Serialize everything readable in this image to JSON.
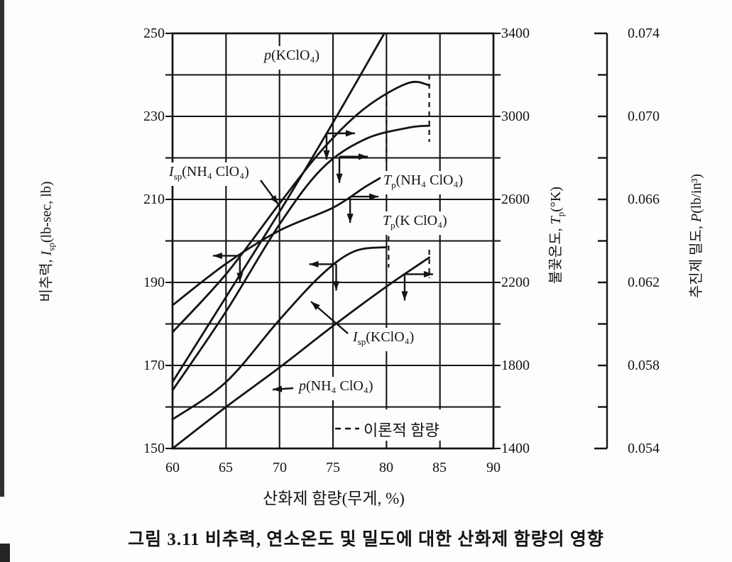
{
  "figure": {
    "caption": "그림 3.11  비추력, 연소온도 및 밀도에 대한 산화제 함량의 영향",
    "ink_color": "#141414",
    "background_color": "#fdfdfb"
  },
  "chart_data": {
    "type": "line",
    "xlabel": "산화제 함량(무게, %)",
    "x_range": [
      60,
      90
    ],
    "x_ticks": [
      "60",
      "65",
      "70",
      "75",
      "80",
      "85",
      "90"
    ],
    "grid": "on",
    "axes": {
      "isp": {
        "side": "left",
        "ko": "비추력, ",
        "var": "I",
        "sub": "sp",
        "unit": "(lb-sec, lb)",
        "range": [
          150,
          250
        ],
        "ticks": [
          "250",
          "230",
          "210",
          "190",
          "170",
          "150"
        ]
      },
      "temp": {
        "side": "right",
        "ko": "불꽃온도, ",
        "var": "T",
        "sub": "p",
        "unit": "(°K)",
        "range": [
          1400,
          3400
        ],
        "ticks": [
          "3400",
          "3000",
          "2600",
          "2200",
          "1800",
          "1400"
        ]
      },
      "density": {
        "side": "far-right",
        "ko": "추진제 밀도, ",
        "var": "P",
        "sub": "",
        "unit": "(lb/in³)",
        "range": [
          0.054,
          0.074
        ],
        "ticks": [
          "0.074",
          "0.070",
          "0.066",
          "0.062",
          "0.058",
          "0.054"
        ]
      }
    },
    "series": [
      {
        "name": "p(KClO4) density",
        "axis": "density",
        "label": {
          "var": "p",
          "sub": "",
          "post": "(KClO₄)"
        },
        "marker": {
          "x": 74.4,
          "dir": "right"
        },
        "points": [
          [
            60,
            0.0572
          ],
          [
            65,
            0.0613
          ],
          [
            70,
            0.0654
          ],
          [
            75,
            0.0697
          ],
          [
            79.8,
            0.074
          ]
        ]
      },
      {
        "name": "Isp(NH4ClO4)",
        "axis": "isp",
        "label": {
          "var": "I",
          "sub": "sp",
          "post": "(NH₄ ClO₄)"
        },
        "marker": {
          "x": 66.3,
          "dir": "left"
        },
        "points": [
          [
            60,
            178
          ],
          [
            65,
            192
          ],
          [
            70,
            209
          ],
          [
            74,
            222
          ],
          [
            78,
            232
          ],
          [
            82,
            238
          ],
          [
            84,
            237.5
          ]
        ]
      },
      {
        "name": "Tp(NH4ClO4)",
        "axis": "temp",
        "label": {
          "var": "T",
          "sub": "p",
          "post": "(NH₄ ClO₄)"
        },
        "marker": {
          "x": 75.6,
          "dir": "right"
        },
        "points": [
          [
            60,
            1680
          ],
          [
            65,
            2060
          ],
          [
            70,
            2480
          ],
          [
            74,
            2750
          ],
          [
            78,
            2890
          ],
          [
            82,
            2945
          ],
          [
            84,
            2955
          ]
        ]
      },
      {
        "name": "Tp(KClO4)",
        "axis": "temp",
        "label": {
          "var": "T",
          "sub": "p",
          "post": "(K ClO₄)"
        },
        "marker": {
          "x": 76.6,
          "dir": "right"
        },
        "points": [
          [
            60,
            2090
          ],
          [
            65,
            2290
          ],
          [
            70,
            2450
          ],
          [
            75,
            2560
          ],
          [
            78,
            2660
          ],
          [
            80,
            2720
          ]
        ]
      },
      {
        "name": "Isp(KClO4)",
        "axis": "isp",
        "label": {
          "var": "I",
          "sub": "sp",
          "post": "(KClO₄)"
        },
        "marker": {
          "x": 75.3,
          "dir": "left"
        },
        "points": [
          [
            60,
            157
          ],
          [
            65,
            166
          ],
          [
            70,
            181
          ],
          [
            74,
            192
          ],
          [
            77,
            197.5
          ],
          [
            80,
            198.5
          ]
        ]
      },
      {
        "name": "p(NH4ClO4) density",
        "axis": "density",
        "label": {
          "var": "p",
          "sub": "",
          "post": "(NH₄ ClO₄)"
        },
        "marker": {
          "x": 81.7,
          "dir": "right"
        },
        "points": [
          [
            60,
            0.054
          ],
          [
            65,
            0.056
          ],
          [
            70,
            0.0579
          ],
          [
            75,
            0.0599
          ],
          [
            80,
            0.0618
          ],
          [
            84,
            0.0632
          ]
        ]
      }
    ],
    "theoretical_content": {
      "legend_label": "이론적 함량",
      "x_values": [
        80,
        84
      ]
    }
  }
}
